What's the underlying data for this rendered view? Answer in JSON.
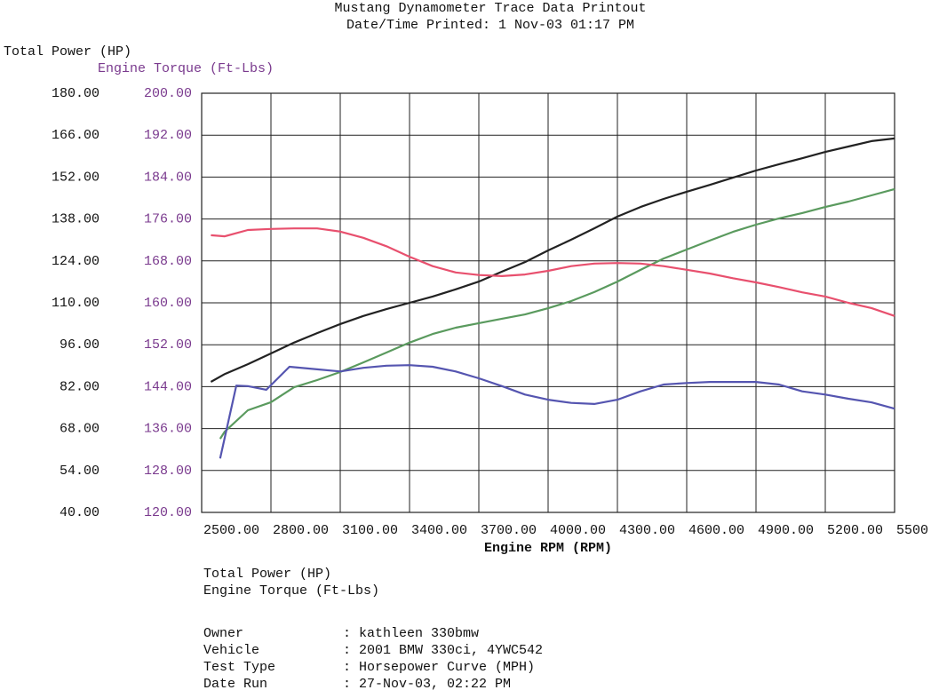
{
  "chart_data": {
    "type": "line",
    "title": "Mustang Dynamometer Trace Data Printout",
    "subtitle": "Date/Time Printed: 1  Nov-03 01:17 PM",
    "y_label": "Total Power (HP)",
    "y2_label": "Engine Torque (Ft-Lbs)",
    "x_label": "Engine RPM (RPM)",
    "xlim": [
      2500,
      5500
    ],
    "xticks": [
      {
        "value": 2500,
        "label": "2500.00"
      },
      {
        "value": 2800,
        "label": "2800.00"
      },
      {
        "value": 3100,
        "label": "3100.00"
      },
      {
        "value": 3400,
        "label": "3400.00"
      },
      {
        "value": 3700,
        "label": "3700.00"
      },
      {
        "value": 4000,
        "label": "4000.00"
      },
      {
        "value": 4300,
        "label": "4300.00"
      },
      {
        "value": 4600,
        "label": "4600.00"
      },
      {
        "value": 4900,
        "label": "4900.00"
      },
      {
        "value": 5200,
        "label": "5200.00"
      },
      5500
    ],
    "ylim": [
      40,
      180
    ],
    "yticks": [
      {
        "value": 180,
        "label": "180.00"
      },
      {
        "value": 166,
        "label": "166.00"
      },
      {
        "value": 152,
        "label": "152.00"
      },
      {
        "value": 138,
        "label": "138.00"
      },
      {
        "value": 124,
        "label": "124.00"
      },
      {
        "value": 110,
        "label": "110.00"
      },
      {
        "value": 96,
        "label": "96.00"
      },
      {
        "value": 82,
        "label": "82.00"
      },
      {
        "value": 68,
        "label": "68.00"
      },
      {
        "value": 54,
        "label": "54.00"
      },
      {
        "value": 40,
        "label": "40.00"
      }
    ],
    "y2lim": [
      120,
      200
    ],
    "y2ticks": [
      {
        "value": 200,
        "label": "200.00"
      },
      {
        "value": 192,
        "label": "192.00"
      },
      {
        "value": 184,
        "label": "184.00"
      },
      {
        "value": 176,
        "label": "176.00"
      },
      {
        "value": 168,
        "label": "168.00"
      },
      {
        "value": 160,
        "label": "160.00"
      },
      {
        "value": 152,
        "label": "152.00"
      },
      {
        "value": 144,
        "label": "144.00"
      },
      {
        "value": 136,
        "label": "136.00"
      },
      {
        "value": 128,
        "label": "128.00"
      },
      {
        "value": 120,
        "label": "120.00"
      }
    ],
    "grid": true,
    "series": [
      {
        "color": "#222222",
        "axis": "y",
        "x": [
          2540,
          2600,
          2700,
          2800,
          2900,
          3000,
          3100,
          3200,
          3300,
          3400,
          3500,
          3600,
          3700,
          3800,
          3900,
          4000,
          4100,
          4200,
          4300,
          4400,
          4500,
          4600,
          4700,
          4800,
          4900,
          5000,
          5100,
          5200,
          5300,
          5400,
          5500
        ],
        "values": [
          83.6,
          86.2,
          89.5,
          93.1,
          96.7,
          99.9,
          102.9,
          105.6,
          107.9,
          110.0,
          112.1,
          114.5,
          117.1,
          120.4,
          123.6,
          127.5,
          131.1,
          134.9,
          138.8,
          142.0,
          144.7,
          147.1,
          149.4,
          151.8,
          154.2,
          156.3,
          158.3,
          160.4,
          162.2,
          164.0,
          164.9
        ]
      },
      {
        "color": "#5a9a5e",
        "axis": "y",
        "x": [
          2580,
          2600,
          2700,
          2800,
          2900,
          3000,
          3100,
          3200,
          3300,
          3400,
          3500,
          3600,
          3700,
          3800,
          3900,
          4000,
          4100,
          4200,
          4300,
          4400,
          4500,
          4600,
          4700,
          4800,
          4900,
          5000,
          5100,
          5200,
          5300,
          5400,
          5500
        ],
        "values": [
          64.6,
          67.0,
          74.1,
          76.8,
          81.8,
          84.2,
          86.9,
          90.1,
          93.4,
          96.7,
          99.6,
          101.7,
          103.2,
          104.7,
          106.1,
          108.2,
          110.6,
          113.6,
          117.1,
          121.0,
          124.8,
          127.8,
          130.8,
          133.7,
          136.1,
          138.2,
          140.0,
          142.0,
          143.8,
          145.9,
          148.0
        ]
      },
      {
        "color": "#e8506e",
        "axis": "y2",
        "x": [
          2540,
          2600,
          2700,
          2800,
          2900,
          3000,
          3100,
          3200,
          3300,
          3400,
          3500,
          3600,
          3700,
          3800,
          3900,
          4000,
          4100,
          4200,
          4300,
          4400,
          4500,
          4600,
          4700,
          4800,
          4900,
          5000,
          5100,
          5200,
          5300,
          5400,
          5500
        ],
        "values": [
          172.9,
          172.7,
          173.9,
          174.1,
          174.2,
          174.2,
          173.6,
          172.4,
          170.8,
          168.8,
          167.0,
          165.8,
          165.3,
          165.1,
          165.4,
          166.1,
          167.0,
          167.5,
          167.6,
          167.5,
          167.0,
          166.3,
          165.6,
          164.7,
          163.9,
          163.0,
          162.0,
          161.2,
          160.0,
          159.0,
          157.5
        ]
      },
      {
        "color": "#5555b0",
        "axis": "y2",
        "x": [
          2580,
          2650,
          2700,
          2780,
          2880,
          3000,
          3100,
          3200,
          3300,
          3400,
          3500,
          3600,
          3700,
          3800,
          3900,
          4000,
          4100,
          4200,
          4300,
          4400,
          4500,
          4600,
          4700,
          4800,
          4900,
          5000,
          5100,
          5200,
          5300,
          5400,
          5500
        ],
        "values": [
          130.3,
          144.2,
          144.1,
          143.4,
          147.8,
          147.3,
          146.9,
          147.6,
          148.0,
          148.1,
          147.8,
          146.9,
          145.6,
          144.1,
          142.5,
          141.5,
          140.9,
          140.7,
          141.5,
          143.1,
          144.4,
          144.7,
          144.9,
          144.9,
          144.9,
          144.4,
          143.1,
          142.5,
          141.7,
          141.0,
          139.8
        ]
      }
    ],
    "legend": [
      {
        "label": "Total Power (HP)",
        "color": "#111111"
      },
      {
        "label": "Engine Torque (Ft-Lbs)",
        "color": "#7a3a8e"
      }
    ]
  },
  "info": [
    {
      "label": "Owner",
      "value": ": kathleen 330bmw"
    },
    {
      "label": "Vehicle",
      "value": ": 2001 BMW 330ci, 4YWC542"
    },
    {
      "label": "Test Type",
      "value": ": Horsepower Curve (MPH)"
    },
    {
      "label": "Date Run",
      "value": ": 27-Nov-03, 02:22 PM"
    }
  ]
}
